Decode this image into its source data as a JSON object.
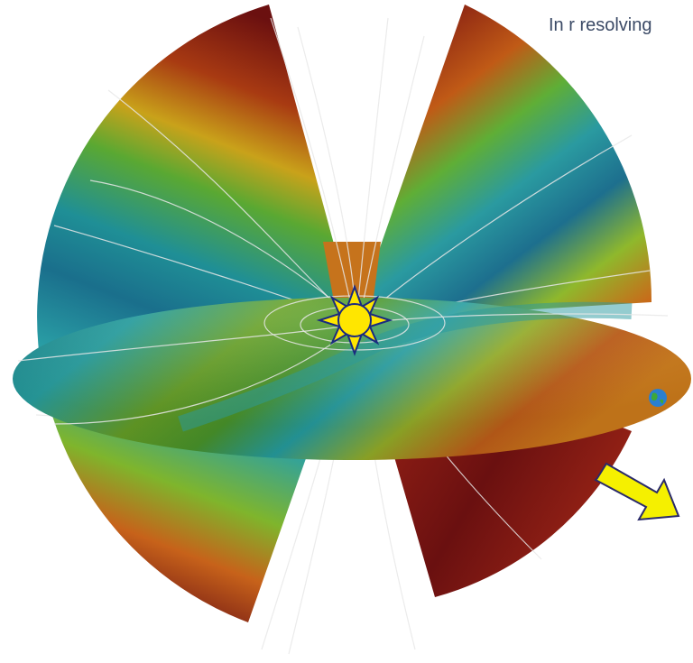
{
  "annotation": "In r resolving"
}
